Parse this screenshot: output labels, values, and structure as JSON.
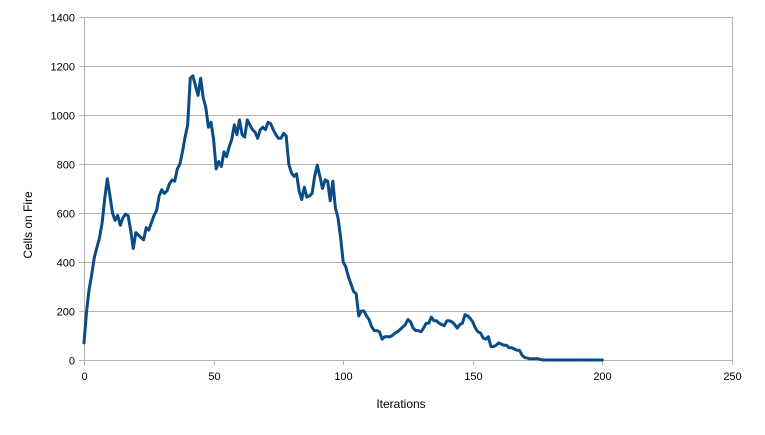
{
  "chart_data": {
    "type": "line",
    "title": "",
    "xlabel": "Iterations",
    "ylabel": "Cells on Fire",
    "xlim": [
      0,
      250
    ],
    "ylim": [
      0,
      1400
    ],
    "xticks": [
      0,
      50,
      100,
      150,
      200,
      250
    ],
    "yticks": [
      0,
      200,
      400,
      600,
      800,
      1000,
      1200,
      1400
    ],
    "grid": "horizontal",
    "legend": "none",
    "series": [
      {
        "color": "#0a4c86",
        "points": [
          [
            0,
            70
          ],
          [
            1,
            200
          ],
          [
            2,
            290
          ],
          [
            3,
            350
          ],
          [
            4,
            420
          ],
          [
            5,
            460
          ],
          [
            6,
            500
          ],
          [
            7,
            560
          ],
          [
            8,
            660
          ],
          [
            9,
            740
          ],
          [
            10,
            670
          ],
          [
            11,
            600
          ],
          [
            12,
            570
          ],
          [
            13,
            590
          ],
          [
            14,
            550
          ],
          [
            15,
            580
          ],
          [
            16,
            595
          ],
          [
            17,
            590
          ],
          [
            18,
            530
          ],
          [
            19,
            455
          ],
          [
            20,
            520
          ],
          [
            21,
            510
          ],
          [
            22,
            500
          ],
          [
            23,
            490
          ],
          [
            24,
            540
          ],
          [
            25,
            530
          ],
          [
            26,
            560
          ],
          [
            27,
            590
          ],
          [
            28,
            610
          ],
          [
            29,
            670
          ],
          [
            30,
            695
          ],
          [
            31,
            680
          ],
          [
            32,
            690
          ],
          [
            33,
            720
          ],
          [
            34,
            735
          ],
          [
            35,
            730
          ],
          [
            36,
            780
          ],
          [
            37,
            800
          ],
          [
            38,
            850
          ],
          [
            39,
            910
          ],
          [
            40,
            960
          ],
          [
            41,
            1150
          ],
          [
            42,
            1160
          ],
          [
            43,
            1120
          ],
          [
            44,
            1080
          ],
          [
            45,
            1150
          ],
          [
            46,
            1070
          ],
          [
            47,
            1030
          ],
          [
            48,
            950
          ],
          [
            49,
            970
          ],
          [
            50,
            900
          ],
          [
            51,
            780
          ],
          [
            52,
            810
          ],
          [
            53,
            790
          ],
          [
            54,
            850
          ],
          [
            55,
            830
          ],
          [
            56,
            870
          ],
          [
            57,
            900
          ],
          [
            58,
            960
          ],
          [
            59,
            920
          ],
          [
            60,
            980
          ],
          [
            61,
            920
          ],
          [
            62,
            910
          ],
          [
            63,
            980
          ],
          [
            64,
            960
          ],
          [
            65,
            940
          ],
          [
            66,
            930
          ],
          [
            67,
            905
          ],
          [
            68,
            940
          ],
          [
            69,
            950
          ],
          [
            70,
            940
          ],
          [
            71,
            970
          ],
          [
            72,
            965
          ],
          [
            73,
            940
          ],
          [
            74,
            920
          ],
          [
            75,
            905
          ],
          [
            76,
            905
          ],
          [
            77,
            925
          ],
          [
            78,
            915
          ],
          [
            79,
            800
          ],
          [
            80,
            765
          ],
          [
            81,
            750
          ],
          [
            82,
            760
          ],
          [
            83,
            690
          ],
          [
            84,
            655
          ],
          [
            85,
            705
          ],
          [
            86,
            665
          ],
          [
            87,
            670
          ],
          [
            88,
            680
          ],
          [
            89,
            750
          ],
          [
            90,
            795
          ],
          [
            91,
            750
          ],
          [
            92,
            700
          ],
          [
            93,
            735
          ],
          [
            94,
            730
          ],
          [
            95,
            650
          ],
          [
            96,
            730
          ],
          [
            97,
            620
          ],
          [
            98,
            580
          ],
          [
            99,
            500
          ],
          [
            100,
            400
          ],
          [
            101,
            380
          ],
          [
            102,
            340
          ],
          [
            103,
            310
          ],
          [
            104,
            280
          ],
          [
            105,
            270
          ],
          [
            106,
            180
          ],
          [
            107,
            200
          ],
          [
            108,
            200
          ],
          [
            109,
            180
          ],
          [
            110,
            165
          ],
          [
            111,
            135
          ],
          [
            112,
            120
          ],
          [
            113,
            120
          ],
          [
            114,
            115
          ],
          [
            115,
            85
          ],
          [
            116,
            95
          ],
          [
            117,
            95
          ],
          [
            118,
            95
          ],
          [
            119,
            100
          ],
          [
            120,
            110
          ],
          [
            121,
            115
          ],
          [
            122,
            125
          ],
          [
            123,
            135
          ],
          [
            124,
            145
          ],
          [
            125,
            165
          ],
          [
            126,
            155
          ],
          [
            127,
            130
          ],
          [
            128,
            120
          ],
          [
            129,
            120
          ],
          [
            130,
            115
          ],
          [
            131,
            130
          ],
          [
            132,
            150
          ],
          [
            133,
            150
          ],
          [
            134,
            175
          ],
          [
            135,
            160
          ],
          [
            136,
            160
          ],
          [
            137,
            150
          ],
          [
            138,
            145
          ],
          [
            139,
            140
          ],
          [
            140,
            160
          ],
          [
            141,
            160
          ],
          [
            142,
            155
          ],
          [
            143,
            145
          ],
          [
            144,
            130
          ],
          [
            145,
            145
          ],
          [
            146,
            150
          ],
          [
            147,
            185
          ],
          [
            148,
            180
          ],
          [
            149,
            170
          ],
          [
            150,
            155
          ],
          [
            151,
            130
          ],
          [
            152,
            115
          ],
          [
            153,
            110
          ],
          [
            154,
            90
          ],
          [
            155,
            85
          ],
          [
            156,
            95
          ],
          [
            157,
            55
          ],
          [
            158,
            55
          ],
          [
            159,
            60
          ],
          [
            160,
            70
          ],
          [
            161,
            65
          ],
          [
            162,
            60
          ],
          [
            163,
            60
          ],
          [
            164,
            50
          ],
          [
            165,
            50
          ],
          [
            166,
            45
          ],
          [
            167,
            40
          ],
          [
            168,
            40
          ],
          [
            169,
            20
          ],
          [
            170,
            10
          ],
          [
            171,
            8
          ],
          [
            172,
            5
          ],
          [
            173,
            5
          ],
          [
            174,
            5
          ],
          [
            175,
            5
          ],
          [
            176,
            3
          ],
          [
            177,
            0
          ],
          [
            178,
            0
          ],
          [
            179,
            0
          ],
          [
            180,
            0
          ],
          [
            181,
            0
          ],
          [
            182,
            0
          ],
          [
            183,
            0
          ],
          [
            184,
            0
          ],
          [
            185,
            0
          ],
          [
            186,
            0
          ],
          [
            187,
            0
          ],
          [
            188,
            0
          ],
          [
            189,
            0
          ],
          [
            190,
            0
          ],
          [
            191,
            0
          ],
          [
            192,
            0
          ],
          [
            193,
            0
          ],
          [
            194,
            0
          ],
          [
            195,
            0
          ],
          [
            196,
            0
          ],
          [
            197,
            0
          ],
          [
            198,
            0
          ],
          [
            199,
            0
          ],
          [
            200,
            0
          ]
        ]
      }
    ]
  }
}
